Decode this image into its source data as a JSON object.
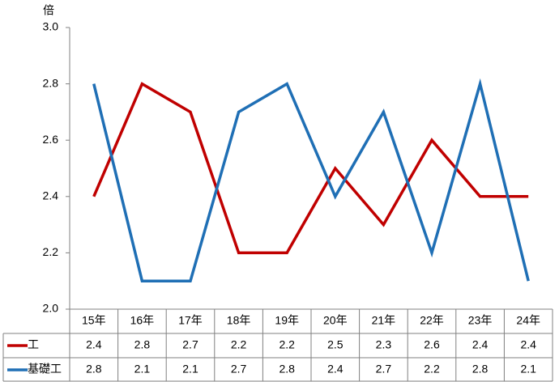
{
  "chart_data": {
    "type": "line",
    "unit_label": "倍",
    "categories": [
      "15年",
      "16年",
      "17年",
      "18年",
      "19年",
      "20年",
      "21年",
      "22年",
      "23年",
      "24年"
    ],
    "series": [
      {
        "name": "工",
        "color": "#c00000",
        "values": [
          2.4,
          2.8,
          2.7,
          2.2,
          2.2,
          2.5,
          2.3,
          2.6,
          2.4,
          2.4
        ]
      },
      {
        "name": "基礎工",
        "color": "#1f6fb5",
        "values": [
          2.8,
          2.1,
          2.1,
          2.7,
          2.8,
          2.4,
          2.7,
          2.2,
          2.8,
          2.1
        ]
      }
    ],
    "ylim": [
      2.0,
      3.0
    ],
    "yticks": [
      "2.0",
      "2.2",
      "2.4",
      "2.6",
      "2.8",
      "3.0"
    ],
    "grid": false,
    "legend": "data-table-left"
  }
}
